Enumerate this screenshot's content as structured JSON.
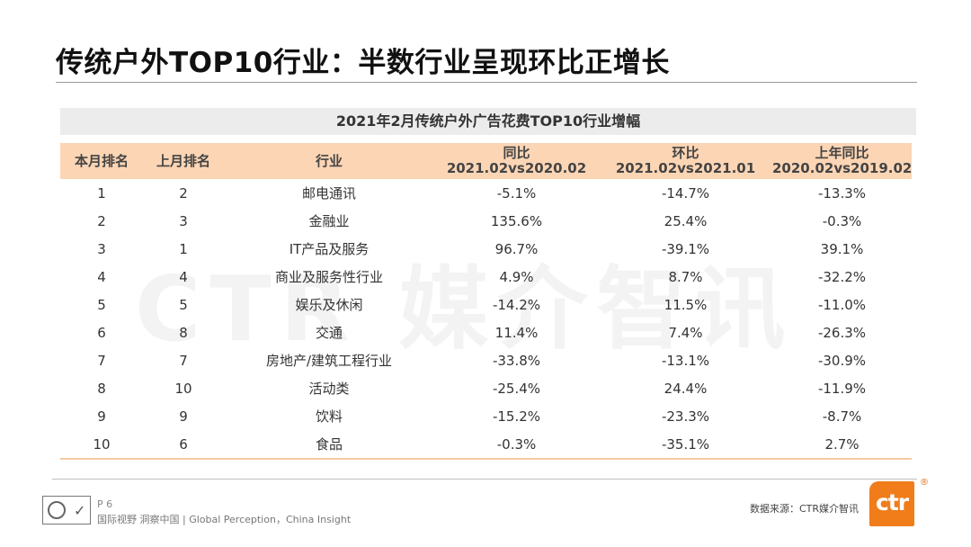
{
  "title": "传统户外TOP10行业：半数行业呈现环比正增长",
  "watermark": "CTR 媒介智讯",
  "table": {
    "caption": "2021年2月传统户外广告花费TOP10行业增幅",
    "headers": [
      [
        "本月排名",
        ""
      ],
      [
        "上月排名",
        ""
      ],
      [
        "行业",
        ""
      ],
      [
        "同比",
        "2021.02vs2020.02"
      ],
      [
        "环比",
        "2021.02vs2021.01"
      ],
      [
        "上年同比",
        "2020.02vs2019.02"
      ]
    ],
    "rows": [
      [
        "1",
        "2",
        "邮电通讯",
        "-5.1%",
        "-14.7%",
        "-13.3%"
      ],
      [
        "2",
        "3",
        "金融业",
        "135.6%",
        "25.4%",
        "-0.3%"
      ],
      [
        "3",
        "1",
        "IT产品及服务",
        "96.7%",
        "-39.1%",
        "39.1%"
      ],
      [
        "4",
        "4",
        "商业及服务性行业",
        "4.9%",
        "8.7%",
        "-32.2%"
      ],
      [
        "5",
        "5",
        "娱乐及休闲",
        "-14.2%",
        "11.5%",
        "-11.0%"
      ],
      [
        "6",
        "8",
        "交通",
        "11.4%",
        "7.4%",
        "-26.3%"
      ],
      [
        "7",
        "7",
        "房地产/建筑工程行业",
        "-33.8%",
        "-13.1%",
        "-30.9%"
      ],
      [
        "8",
        "10",
        "活动类",
        "-25.4%",
        "24.4%",
        "-11.9%"
      ],
      [
        "9",
        "9",
        "饮料",
        "-15.2%",
        "-23.3%",
        "-8.7%"
      ],
      [
        "10",
        "6",
        "食品",
        "-0.3%",
        "-35.1%",
        "2.7%"
      ]
    ]
  },
  "footer": {
    "page": "P 6",
    "tagline": "国际视野  洞察中国 | Global Perception，China Insight",
    "source": "数据来源：CTR媒介智讯",
    "logo": "ctr",
    "registered": "®"
  }
}
